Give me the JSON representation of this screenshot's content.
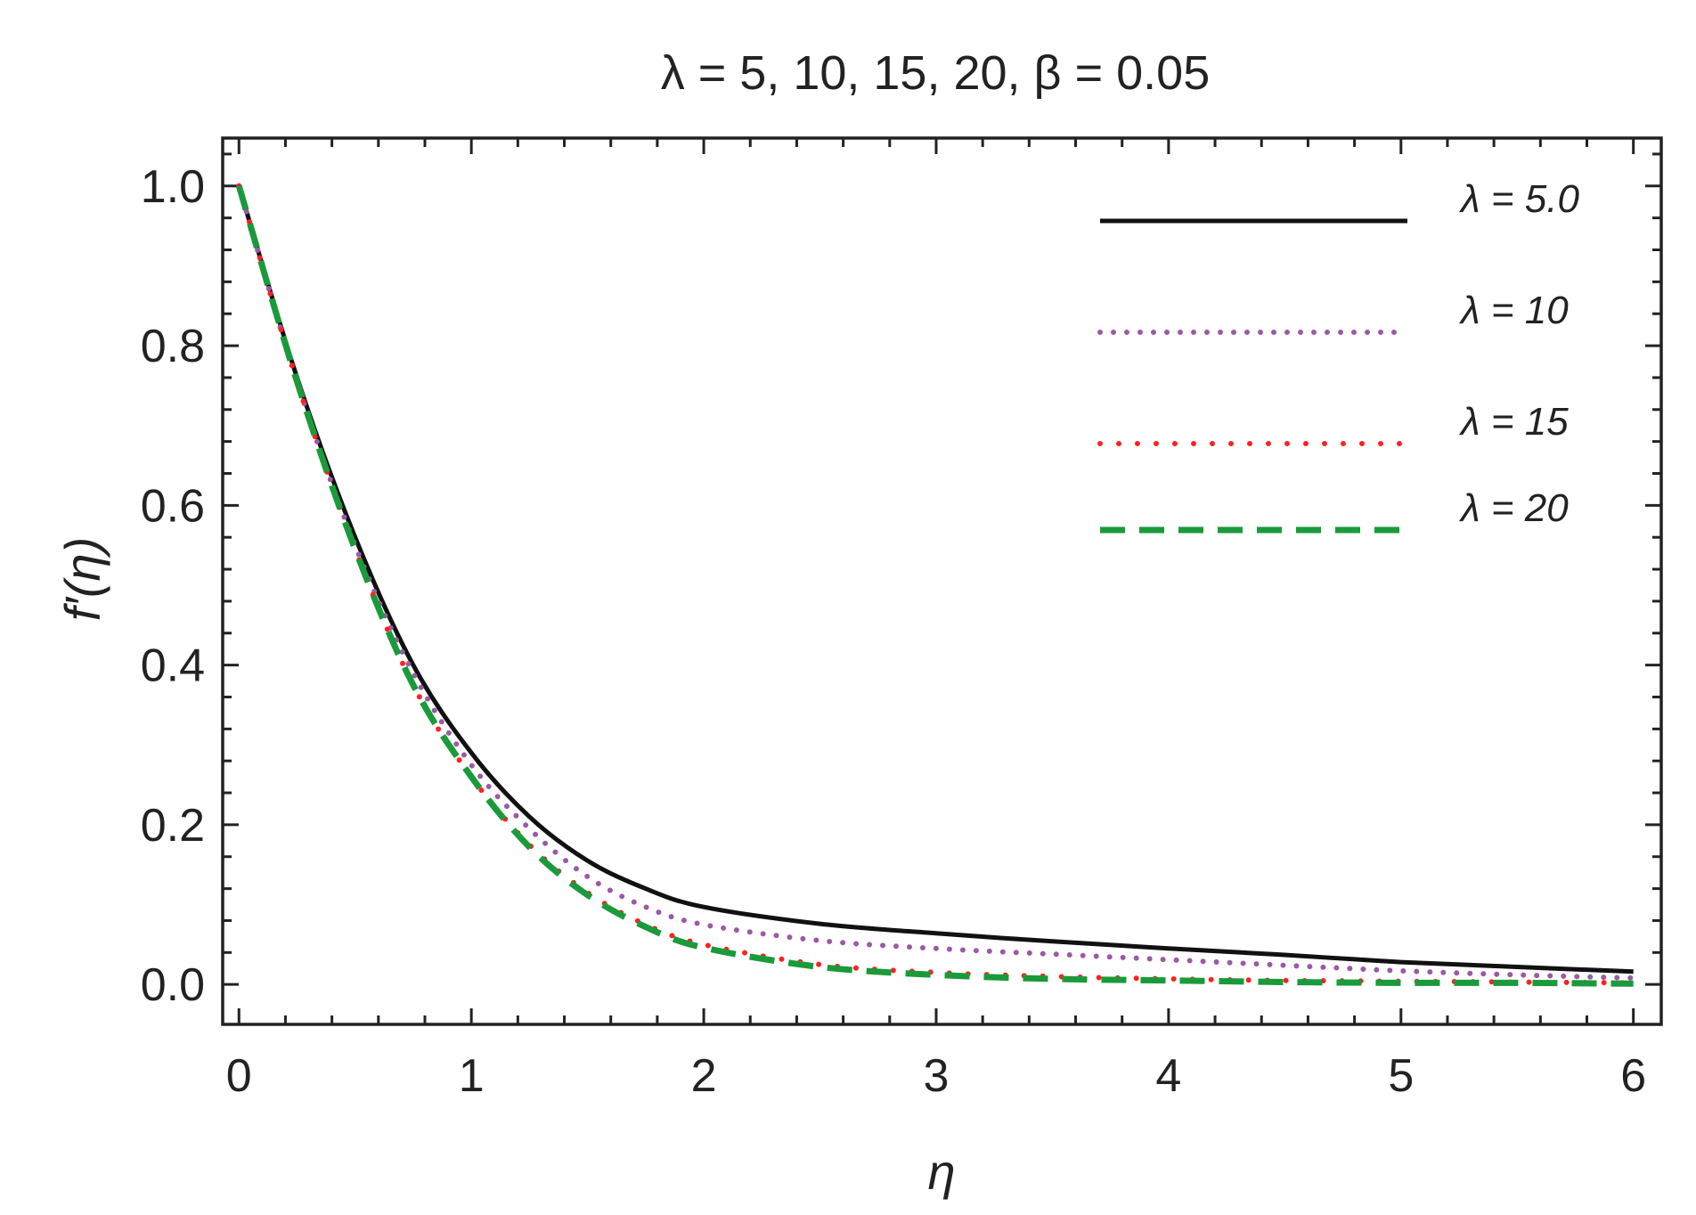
{
  "chart_data": {
    "type": "line",
    "title": "λ = 5, 10, 15, 20, β = 0.05",
    "xlabel": "η",
    "ylabel": "f′(η)",
    "xlim": [
      -0.07,
      6.12
    ],
    "ylim": [
      -0.05,
      1.06
    ],
    "xticks": [
      0,
      1,
      2,
      3,
      4,
      5,
      6
    ],
    "xtick_labels": [
      "0",
      "1",
      "2",
      "3",
      "4",
      "5",
      "6"
    ],
    "yticks": [
      0.0,
      0.2,
      0.4,
      0.6,
      0.8,
      1.0
    ],
    "ytick_labels": [
      "0.0",
      "0.2",
      "0.4",
      "0.6",
      "0.8",
      "1.0"
    ],
    "grid": false,
    "legend_position": "top-right",
    "x": [
      0,
      0.25,
      0.5,
      0.75,
      1.0,
      1.25,
      1.5,
      1.75,
      2.0,
      2.5,
      3.0,
      3.5,
      4.0,
      4.5,
      5.0,
      5.5,
      6.0
    ],
    "series": [
      {
        "name": "λ = 5.0",
        "color": "#111111",
        "style": "solid",
        "values": [
          1.0,
          0.76,
          0.56,
          0.4,
          0.29,
          0.21,
          0.155,
          0.12,
          0.097,
          0.076,
          0.064,
          0.054,
          0.045,
          0.037,
          0.028,
          0.022,
          0.016
        ]
      },
      {
        "name": "λ = 10",
        "color": "#9b59a6",
        "style": "dotted",
        "values": [
          1.0,
          0.755,
          0.55,
          0.39,
          0.275,
          0.195,
          0.135,
          0.097,
          0.075,
          0.055,
          0.045,
          0.038,
          0.031,
          0.024,
          0.017,
          0.012,
          0.008
        ]
      },
      {
        "name": "λ = 15",
        "color": "#ff2020",
        "style": "dotted",
        "values": [
          1.0,
          0.755,
          0.545,
          0.375,
          0.26,
          0.175,
          0.115,
          0.075,
          0.05,
          0.025,
          0.015,
          0.01,
          0.007,
          0.005,
          0.004,
          0.003,
          0.002
        ]
      },
      {
        "name": "λ = 20",
        "color": "#1a9a3a",
        "style": "dashed",
        "values": [
          1.0,
          0.755,
          0.545,
          0.375,
          0.26,
          0.172,
          0.112,
          0.072,
          0.046,
          0.022,
          0.012,
          0.007,
          0.005,
          0.003,
          0.002,
          0.002,
          0.001
        ]
      }
    ]
  }
}
